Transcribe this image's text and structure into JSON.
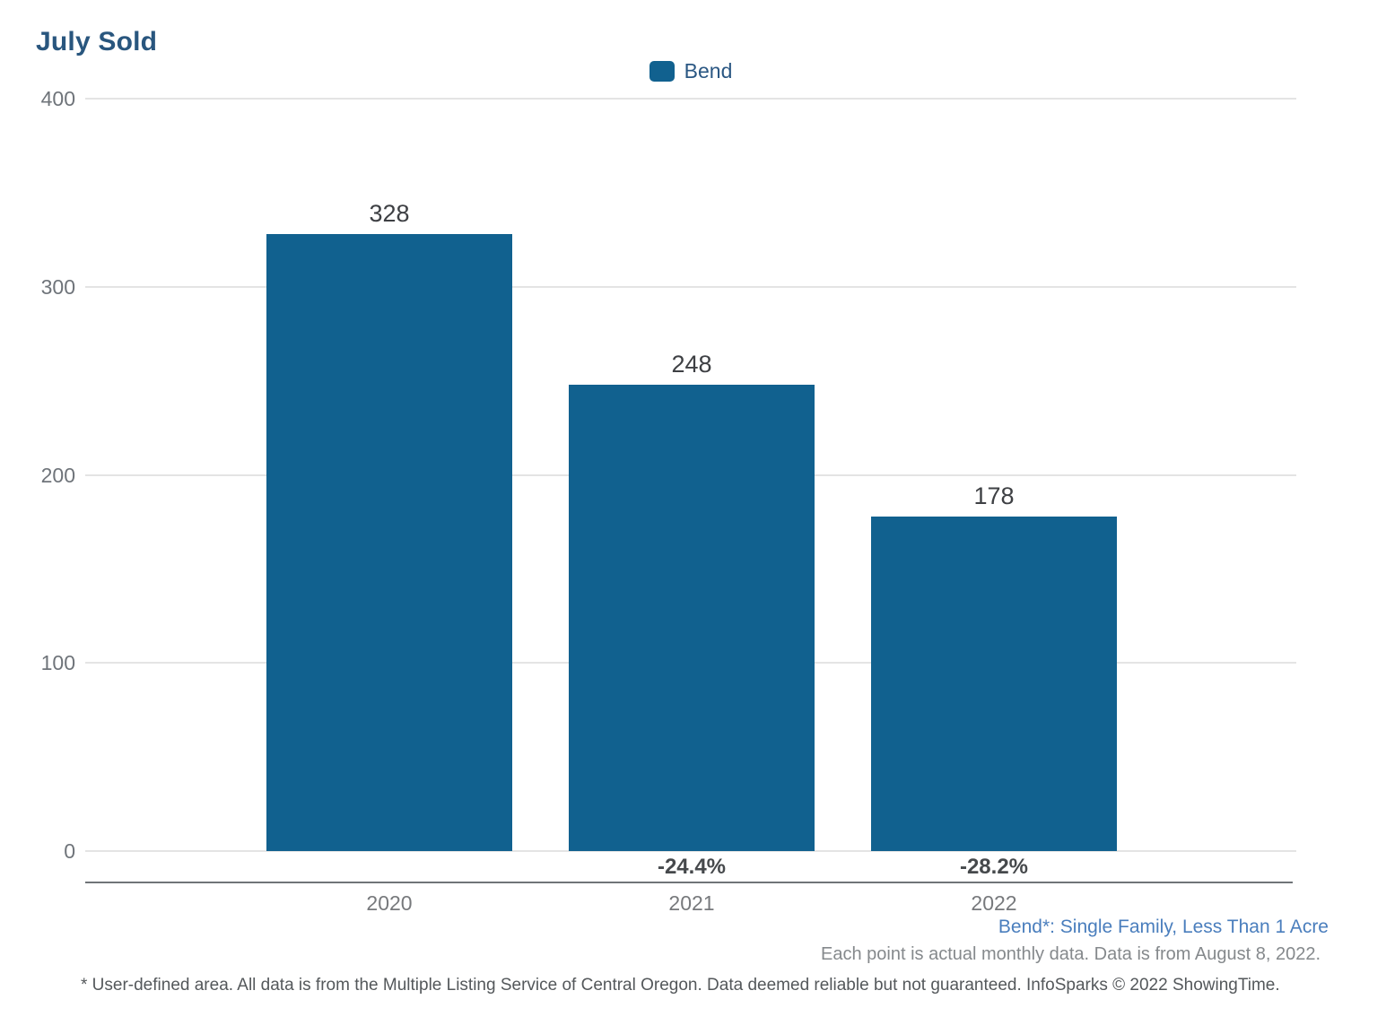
{
  "title": "July Sold",
  "legend": {
    "label": "Bend",
    "swatch_color": "#11618F"
  },
  "chart_data": {
    "type": "bar",
    "title": "July Sold",
    "series_name": "Bend",
    "categories": [
      "2020",
      "2021",
      "2022"
    ],
    "values": [
      328,
      248,
      178
    ],
    "pct_change": [
      "",
      "-24.4%",
      "-28.2%"
    ],
    "xlabel": "",
    "ylabel": "",
    "ylim": [
      0,
      400
    ],
    "yticks": [
      0,
      100,
      200,
      300,
      400
    ],
    "grid": true,
    "legend_position": "top-center",
    "bar_color": "#11618F"
  },
  "footnotes": {
    "series_note": "Bend*: Single Family, Less Than 1 Acre",
    "data_note": "Each point is actual monthly data. Data is from August 8, 2022.",
    "disclaimer": "* User-defined area. All data is from the Multiple Listing Service of Central Oregon. Data deemed reliable but not guaranteed. InfoSparks © 2022 ShowingTime."
  },
  "colors": {
    "title_text": "#29567E",
    "bar": "#11618F",
    "gridline": "#E4E4E4",
    "axis_line": "#707478",
    "tick_text": "#6F747A",
    "value_text": "#3E4044",
    "pct_text": "#46494C",
    "series_note_text": "#4A7EBD",
    "note_text": "#85898C",
    "disclaimer_text": "#54585B"
  }
}
